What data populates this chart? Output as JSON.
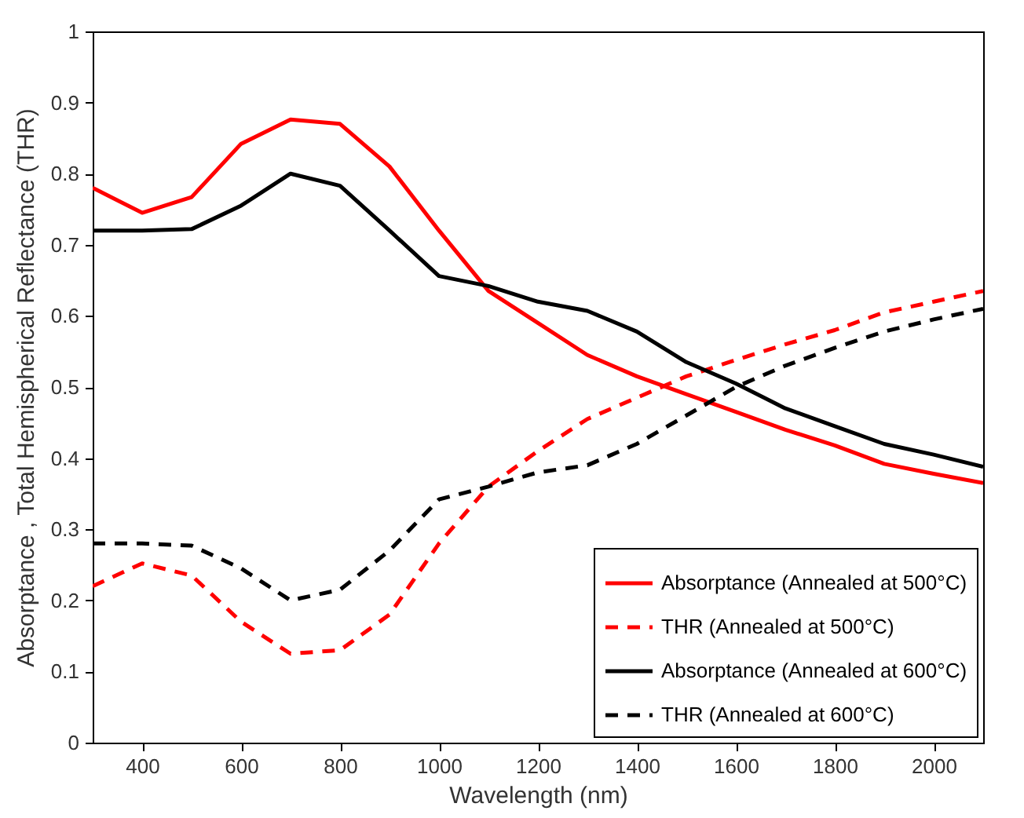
{
  "chart_data": {
    "type": "line",
    "xlabel": "Wavelength (nm)",
    "ylabel": "Absorptance , Total Hemispherical Reflectance (THR)",
    "x": [
      300,
      400,
      500,
      600,
      700,
      800,
      900,
      1000,
      1100,
      1200,
      1300,
      1400,
      1500,
      1600,
      1700,
      1800,
      1900,
      2000,
      2100
    ],
    "series": [
      {
        "name": "Absorptance (Annealed at 500°C)",
        "color": "#ff0000",
        "line_style": "solid",
        "values": [
          0.78,
          0.745,
          0.767,
          0.842,
          0.876,
          0.87,
          0.81,
          0.72,
          0.635,
          0.59,
          0.545,
          0.515,
          0.49,
          0.465,
          0.44,
          0.418,
          0.392,
          0.378,
          0.365
        ]
      },
      {
        "name": "THR (Annealed at 500°C)",
        "color": "#ff0000",
        "line_style": "dashed",
        "values": [
          0.22,
          0.252,
          0.235,
          0.17,
          0.125,
          0.13,
          0.18,
          0.28,
          0.36,
          0.41,
          0.455,
          0.485,
          0.515,
          0.538,
          0.56,
          0.58,
          0.605,
          0.62,
          0.635
        ]
      },
      {
        "name": "Absorptance (Annealed at 600°C)",
        "color": "#000000",
        "line_style": "solid",
        "values": [
          0.72,
          0.72,
          0.722,
          0.755,
          0.8,
          0.783,
          0.72,
          0.656,
          0.642,
          0.62,
          0.607,
          0.578,
          0.535,
          0.505,
          0.47,
          0.445,
          0.42,
          0.405,
          0.388
        ]
      },
      {
        "name": "THR (Annealed at 600°C)",
        "color": "#000000",
        "line_style": "dashed",
        "values": [
          0.28,
          0.28,
          0.277,
          0.245,
          0.2,
          0.215,
          0.27,
          0.342,
          0.36,
          0.38,
          0.39,
          0.42,
          0.46,
          0.5,
          0.53,
          0.555,
          0.578,
          0.595,
          0.61
        ]
      }
    ],
    "xlim": [
      300,
      2100
    ],
    "xticks": [
      400,
      600,
      800,
      1000,
      1200,
      1400,
      1600,
      1800,
      2000
    ],
    "ylim": [
      0,
      1
    ],
    "yticks": [
      0,
      0.1,
      0.2,
      0.3,
      0.4,
      0.5,
      0.6,
      0.7,
      0.8,
      0.9,
      1
    ],
    "grid": false,
    "legend": "bottom right"
  }
}
